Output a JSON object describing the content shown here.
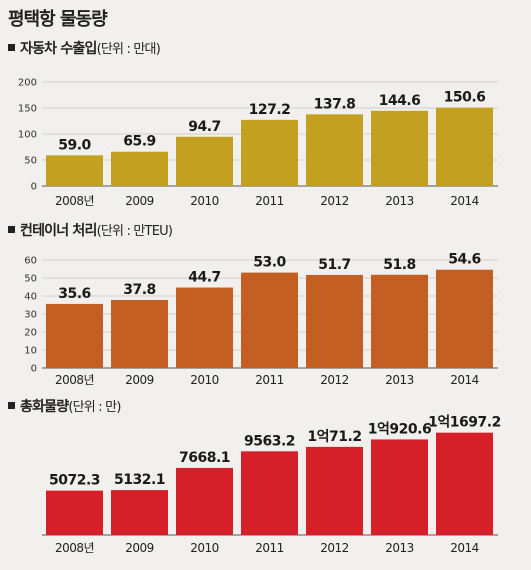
{
  "title": "평택항 물동량",
  "chart_data": [
    {
      "type": "bar",
      "title": "자동차 수출입",
      "unit": "(단위 : 만대)",
      "color": "#c3a01f",
      "categories": [
        "2008년",
        "2009",
        "2010",
        "2011",
        "2012",
        "2013",
        "2014"
      ],
      "values": [
        59.0,
        65.9,
        94.7,
        127.2,
        137.8,
        144.6,
        150.6
      ],
      "value_labels": [
        "59.0",
        "65.9",
        "94.7",
        "127.2",
        "137.8",
        "144.6",
        "150.6"
      ],
      "yticks": [
        "0",
        "50",
        "100",
        "150",
        "200"
      ],
      "ylim": [
        0,
        200
      ],
      "grid": true
    },
    {
      "type": "bar",
      "title": "컨테이너 처리",
      "unit": "(단위 : 만TEU)",
      "color": "#c35f22",
      "categories": [
        "2008년",
        "2009",
        "2010",
        "2011",
        "2012",
        "2013",
        "2014"
      ],
      "values": [
        35.6,
        37.8,
        44.7,
        53.0,
        51.7,
        51.8,
        54.6
      ],
      "value_labels": [
        "35.6",
        "37.8",
        "44.7",
        "53.0",
        "51.7",
        "51.8",
        "54.6"
      ],
      "yticks": [
        "0",
        "10",
        "20",
        "30",
        "40",
        "50",
        "60"
      ],
      "ylim": [
        0,
        60
      ],
      "grid": true
    },
    {
      "type": "bar",
      "title": "총화물량",
      "unit": "(단위 : 만)",
      "color": "#d5202a",
      "categories": [
        "2008년",
        "2009",
        "2010",
        "2011",
        "2012",
        "2013",
        "2014"
      ],
      "values": [
        5072.3,
        5132.1,
        7668.1,
        9563.2,
        10071.2,
        10920.6,
        11697.2
      ],
      "value_labels": [
        "5072.3",
        "5132.1",
        "7668.1",
        "9563.2",
        "1억71.2",
        "1억920.6",
        "1억1697.2"
      ],
      "yticks": [],
      "ylim": [
        0,
        12000
      ],
      "grid": false
    }
  ]
}
